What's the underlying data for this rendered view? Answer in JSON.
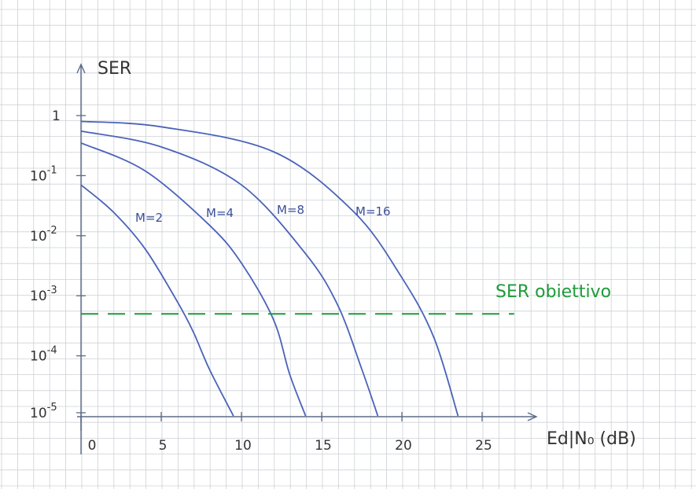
{
  "chart_data": {
    "type": "line",
    "title": "",
    "ylabel": "SER",
    "xlabel": "Ed|N₀ (dB)",
    "y_scale": "log",
    "x_ticks": [
      "0",
      "5",
      "10",
      "15",
      "20",
      "25"
    ],
    "y_ticks": [
      {
        "base": "1",
        "exp": ""
      },
      {
        "base": "10",
        "exp": "-1"
      },
      {
        "base": "10",
        "exp": "-2"
      },
      {
        "base": "10",
        "exp": "-3"
      },
      {
        "base": "10",
        "exp": "-4"
      },
      {
        "base": "10",
        "exp": "-5"
      }
    ],
    "xlim": [
      0,
      27
    ],
    "ylim": [
      1e-05,
      1
    ],
    "grid": true,
    "series": [
      {
        "name": "M=2",
        "x": [
          0,
          2,
          4,
          6,
          7,
          8,
          9.5
        ],
        "y": [
          0.07,
          0.025,
          0.006,
          0.0008,
          0.00025,
          6e-05,
          1e-05
        ]
      },
      {
        "name": "M=4",
        "x": [
          0,
          4,
          8,
          10,
          12,
          13,
          14
        ],
        "y": [
          0.35,
          0.12,
          0.015,
          0.0035,
          0.0004,
          5e-05,
          1e-05
        ]
      },
      {
        "name": "M=8",
        "x": [
          0,
          5,
          10,
          14,
          16,
          17.5,
          18.5
        ],
        "y": [
          0.55,
          0.3,
          0.07,
          0.005,
          0.0007,
          6e-05,
          1e-05
        ]
      },
      {
        "name": "M=16",
        "x": [
          0,
          5,
          12,
          17,
          20,
          22,
          23.5
        ],
        "y": [
          0.8,
          0.65,
          0.25,
          0.025,
          0.002,
          0.0002,
          1e-05
        ]
      }
    ],
    "target_line": {
      "label": "SER obiettivo",
      "y": 0.0005,
      "x_range": [
        0,
        27
      ]
    },
    "colors": {
      "grid": "#cdd1d6",
      "axis": "#5b6b88",
      "curve": "#4a63b8",
      "curve_label": "#3a4f9a",
      "target": "#1f9a3a"
    }
  }
}
